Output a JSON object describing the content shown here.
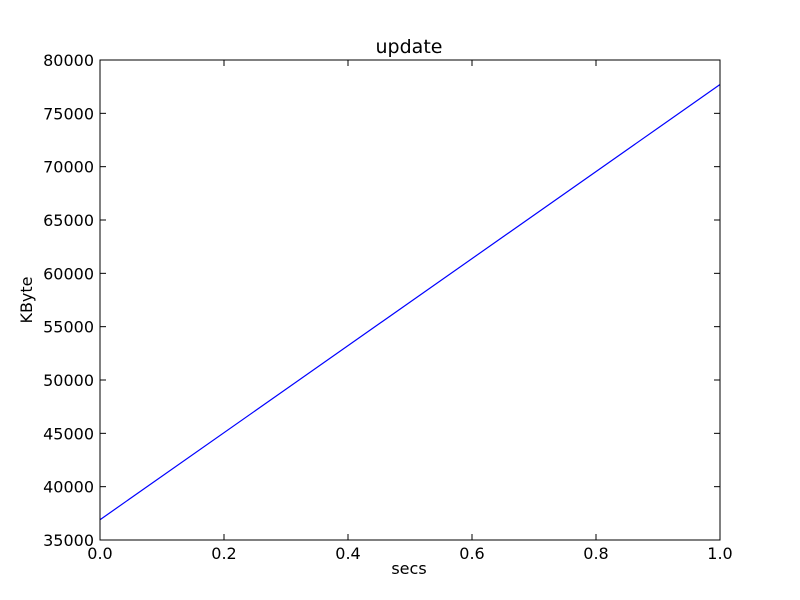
{
  "chart_data": {
    "type": "line",
    "title": "update",
    "xlabel": "secs",
    "ylabel": "KByte",
    "xlim": [
      0.0,
      1.0
    ],
    "ylim": [
      35000,
      80000
    ],
    "xticks": [
      "0.0",
      "0.2",
      "0.4",
      "0.6",
      "0.8",
      "1.0"
    ],
    "yticks": [
      "35000",
      "40000",
      "45000",
      "50000",
      "55000",
      "60000",
      "65000",
      "70000",
      "75000",
      "80000"
    ],
    "grid": false,
    "series": [
      {
        "color": "#0000ff",
        "x": [
          0.0,
          1.0
        ],
        "y": [
          36900,
          77700
        ]
      }
    ]
  }
}
